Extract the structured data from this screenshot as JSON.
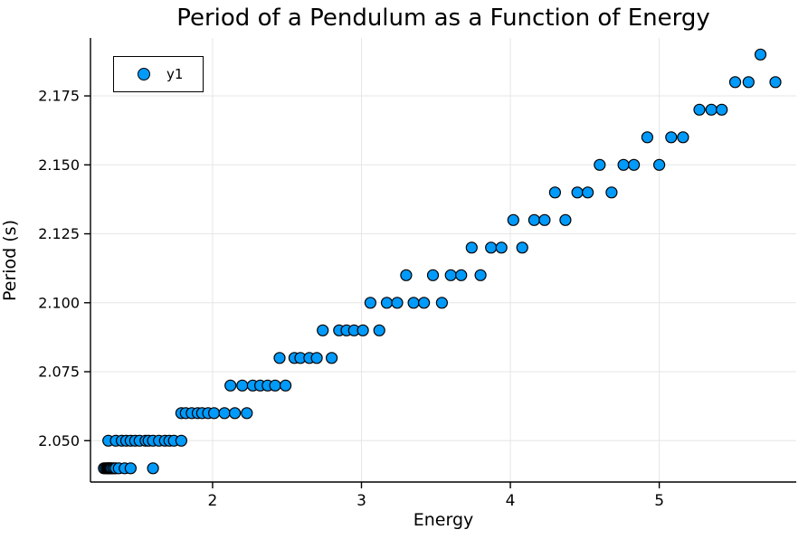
{
  "title": "Period of a Pendulum as a Function of Energy",
  "legend": {
    "label": "y1"
  },
  "colors": {
    "marker_fill": "#009AFA",
    "marker_stroke": "#000000",
    "grid": "#E6E6E6",
    "axis": "#000000",
    "background": "#FFFFFF"
  },
  "chart_data": {
    "type": "scatter",
    "title": "Period of a Pendulum as a Function of Energy",
    "xlabel": "Energy",
    "ylabel": "Period (s)",
    "xlim": [
      1.18,
      5.92
    ],
    "ylim": [
      2.035,
      2.196
    ],
    "xticks": [
      2,
      3,
      4,
      5
    ],
    "xtick_labels": [
      "2",
      "3",
      "4",
      "5"
    ],
    "yticks": [
      2.05,
      2.075,
      2.1,
      2.125,
      2.15,
      2.175
    ],
    "ytick_labels": [
      "2.050",
      "2.075",
      "2.100",
      "2.125",
      "2.150",
      "2.175"
    ],
    "grid": true,
    "legend_position": "top-left",
    "series": [
      {
        "name": "y1",
        "x": [
          1.27,
          1.28,
          1.29,
          1.295,
          1.3,
          1.305,
          1.31,
          1.315,
          1.32,
          1.33,
          1.34,
          1.35,
          1.37,
          1.41,
          1.45,
          1.6,
          1.3,
          1.35,
          1.39,
          1.42,
          1.45,
          1.48,
          1.51,
          1.55,
          1.57,
          1.6,
          1.64,
          1.68,
          1.71,
          1.74,
          1.79,
          1.79,
          1.82,
          1.86,
          1.9,
          1.93,
          1.97,
          2.01,
          2.08,
          2.15,
          2.23,
          2.12,
          2.2,
          2.27,
          2.32,
          2.37,
          2.42,
          2.49,
          2.45,
          2.55,
          2.59,
          2.65,
          2.7,
          2.8,
          2.74,
          2.85,
          2.9,
          2.95,
          3.01,
          3.12,
          3.06,
          3.17,
          3.24,
          3.35,
          3.42,
          3.54,
          3.3,
          3.48,
          3.6,
          3.67,
          3.8,
          3.74,
          3.87,
          3.94,
          4.08,
          4.02,
          4.16,
          4.23,
          4.37,
          4.3,
          4.45,
          4.52,
          4.68,
          4.6,
          4.76,
          4.83,
          5.0,
          4.92,
          5.08,
          5.16,
          5.27,
          5.35,
          5.42,
          5.51,
          5.6,
          5.78,
          5.68
        ],
        "y": [
          2.04,
          2.04,
          2.04,
          2.04,
          2.04,
          2.04,
          2.04,
          2.04,
          2.04,
          2.04,
          2.04,
          2.04,
          2.04,
          2.04,
          2.04,
          2.04,
          2.05,
          2.05,
          2.05,
          2.05,
          2.05,
          2.05,
          2.05,
          2.05,
          2.05,
          2.05,
          2.05,
          2.05,
          2.05,
          2.05,
          2.05,
          2.06,
          2.06,
          2.06,
          2.06,
          2.06,
          2.06,
          2.06,
          2.06,
          2.06,
          2.06,
          2.07,
          2.07,
          2.07,
          2.07,
          2.07,
          2.07,
          2.07,
          2.08,
          2.08,
          2.08,
          2.08,
          2.08,
          2.08,
          2.09,
          2.09,
          2.09,
          2.09,
          2.09,
          2.09,
          2.1,
          2.1,
          2.1,
          2.1,
          2.1,
          2.1,
          2.11,
          2.11,
          2.11,
          2.11,
          2.11,
          2.12,
          2.12,
          2.12,
          2.12,
          2.13,
          2.13,
          2.13,
          2.13,
          2.14,
          2.14,
          2.14,
          2.14,
          2.15,
          2.15,
          2.15,
          2.15,
          2.16,
          2.16,
          2.16,
          2.17,
          2.17,
          2.17,
          2.18,
          2.18,
          2.18,
          2.19
        ]
      }
    ]
  }
}
